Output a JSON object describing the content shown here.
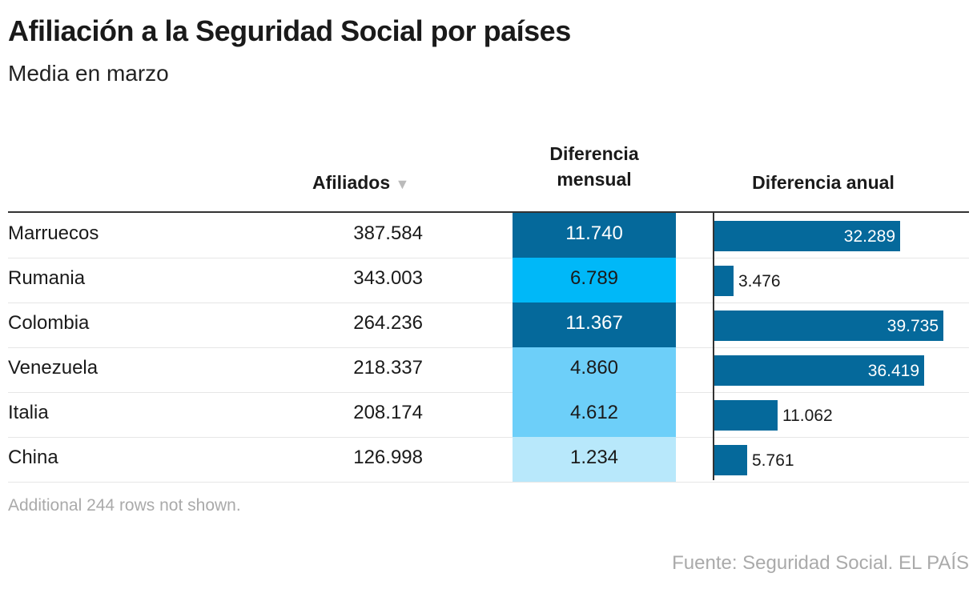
{
  "title": "Afiliación a la Seguridad Social por países",
  "subtitle": "Media en marzo",
  "chart_data": {
    "type": "table",
    "columns": [
      "",
      "Afiliados",
      "Diferencia mensual",
      "Diferencia anual"
    ],
    "sort_indicator": "▼",
    "rows": [
      {
        "pais": "Marruecos",
        "afiliados": "387.584",
        "mensual": "11.740",
        "anual": "32.289",
        "mensual_v": 11740,
        "anual_v": 32289,
        "color": "#05699b",
        "text": "#ffffff"
      },
      {
        "pais": "Rumania",
        "afiliados": "343.003",
        "mensual": "6.789",
        "anual": "3.476",
        "mensual_v": 6789,
        "anual_v": 3476,
        "color": "#00b8f8",
        "text": "#1a1a1a"
      },
      {
        "pais": "Colombia",
        "afiliados": "264.236",
        "mensual": "11.367",
        "anual": "39.735",
        "mensual_v": 11367,
        "anual_v": 39735,
        "color": "#05699b",
        "text": "#ffffff"
      },
      {
        "pais": "Venezuela",
        "afiliados": "218.337",
        "mensual": "4.860",
        "anual": "36.419",
        "mensual_v": 4860,
        "anual_v": 36419,
        "color": "#6dcff9",
        "text": "#1a1a1a"
      },
      {
        "pais": "Italia",
        "afiliados": "208.174",
        "mensual": "4.612",
        "anual": "11.062",
        "mensual_v": 4612,
        "anual_v": 11062,
        "color": "#6dcff9",
        "text": "#1a1a1a"
      },
      {
        "pais": "China",
        "afiliados": "126.998",
        "mensual": "1.234",
        "anual": "5.761",
        "mensual_v": 1234,
        "anual_v": 5761,
        "color": "#b8e8fb",
        "text": "#1a1a1a"
      }
    ],
    "bar_color": "#05699b",
    "anual_max": 39735
  },
  "note": "Additional 244 rows not shown.",
  "source": "Fuente: Seguridad Social. EL PAÍS"
}
